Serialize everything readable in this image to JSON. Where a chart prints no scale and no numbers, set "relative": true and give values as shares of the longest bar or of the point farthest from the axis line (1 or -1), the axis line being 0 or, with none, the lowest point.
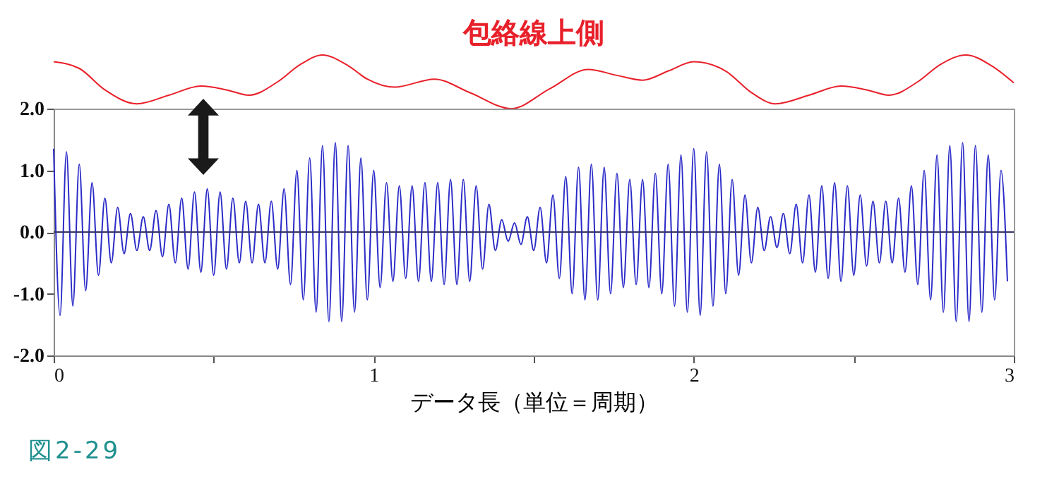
{
  "chart_data": [
    {
      "type": "line",
      "relative": true,
      "xlim": [
        0,
        3
      ],
      "tick_labels": false,
      "series": [
        {
          "name": "包絡線上側",
          "color": "#e8202a",
          "x": [
            0,
            0.08,
            0.16,
            0.26,
            0.36,
            0.46,
            0.54,
            0.61,
            0.7,
            0.77,
            0.84,
            0.92,
            0.98,
            1.065,
            1.19,
            1.3,
            1.43,
            1.55,
            1.67,
            1.76,
            1.84,
            1.92,
            2.0,
            2.1,
            2.18,
            2.255,
            2.36,
            2.46,
            2.54,
            2.61,
            2.7,
            2.77,
            2.85,
            2.93,
            3.0
          ],
          "values": [
            0.875,
            0.75,
            0.35,
            0.09,
            0.25,
            0.42,
            0.35,
            0.25,
            0.5,
            0.82,
            1,
            0.8,
            0.55,
            0.4,
            0.55,
            0.3,
            0,
            0.37,
            0.73,
            0.62,
            0.53,
            0.7,
            0.875,
            0.7,
            0.3,
            0.09,
            0.25,
            0.42,
            0.35,
            0.25,
            0.5,
            0.82,
            1,
            0.8,
            0.48
          ]
        }
      ]
    },
    {
      "type": "line",
      "xlabel": "データ長（単位＝周期）",
      "annotations": [
        "図2-29"
      ],
      "xlim": [
        0,
        3
      ],
      "ylim": [
        -2,
        2
      ],
      "xticks": [
        0,
        {
          "value": 0.5,
          "label": null
        },
        1,
        {
          "value": 1.5,
          "label": null
        },
        2,
        {
          "value": 2.5,
          "label": null
        },
        3
      ],
      "yticks": [
        {
          "value": -2,
          "label": "-2.0"
        },
        {
          "value": -1,
          "label": "-1.0"
        },
        {
          "value": 0,
          "label": "0.0"
        },
        {
          "value": 1,
          "label": "1.0"
        },
        {
          "value": 2,
          "label": "2.0"
        }
      ],
      "ref_lines": [
        {
          "axis": "y",
          "value": 0,
          "color": "#333366"
        }
      ],
      "series": [
        {
          "color": "#2b2bc8",
          "x": [
            0,
            0.02,
            0.04,
            0.06,
            0.08,
            0.1,
            0.12,
            0.14,
            0.16,
            0.18,
            0.2,
            0.22,
            0.24,
            0.26,
            0.28,
            0.3,
            0.32,
            0.34,
            0.36,
            0.38,
            0.4,
            0.42,
            0.44,
            0.46,
            0.48,
            0.5,
            0.52,
            0.54,
            0.56,
            0.58,
            0.6,
            0.62,
            0.64,
            0.66,
            0.68,
            0.7,
            0.72,
            0.74,
            0.76,
            0.78,
            0.8,
            0.82,
            0.84,
            0.86,
            0.88,
            0.9,
            0.92,
            0.94,
            0.96,
            0.98,
            1,
            1.02,
            1.04,
            1.06,
            1.08,
            1.1,
            1.12,
            1.14,
            1.16,
            1.18,
            1.2,
            1.22,
            1.24,
            1.26,
            1.28,
            1.3,
            1.32,
            1.34,
            1.36,
            1.38,
            1.4,
            1.42,
            1.44,
            1.46,
            1.48,
            1.5,
            1.52,
            1.54,
            1.56,
            1.58,
            1.6,
            1.62,
            1.64,
            1.66,
            1.68,
            1.7,
            1.72,
            1.74,
            1.76,
            1.78,
            1.8,
            1.82,
            1.84,
            1.86,
            1.88,
            1.9,
            1.92,
            1.94,
            1.96,
            1.98,
            2,
            2.02,
            2.04,
            2.06,
            2.08,
            2.1,
            2.12,
            2.14,
            2.16,
            2.18,
            2.2,
            2.22,
            2.24,
            2.26,
            2.28,
            2.3,
            2.32,
            2.34,
            2.36,
            2.38,
            2.4,
            2.42,
            2.44,
            2.46,
            2.48,
            2.5,
            2.52,
            2.54,
            2.56,
            2.58,
            2.6,
            2.62,
            2.64,
            2.66,
            2.68,
            2.7,
            2.72,
            2.74,
            2.76,
            2.78,
            2.8,
            2.82,
            2.84,
            2.86,
            2.88,
            2.9,
            2.92,
            2.94,
            2.96,
            2.98
          ],
          "values": [
            1.35,
            -1.35,
            1.3,
            -1.2,
            1.1,
            -0.95,
            0.8,
            -0.7,
            0.55,
            -0.5,
            0.4,
            -0.35,
            0.3,
            -0.3,
            0.25,
            -0.3,
            0.35,
            -0.4,
            0.45,
            -0.5,
            0.55,
            -0.6,
            0.65,
            -0.65,
            0.7,
            -0.7,
            0.65,
            -0.6,
            0.55,
            -0.5,
            0.5,
            -0.5,
            0.45,
            -0.5,
            0.5,
            -0.6,
            0.7,
            -0.85,
            1.0,
            -1.1,
            1.2,
            -1.3,
            1.4,
            -1.45,
            1.45,
            -1.45,
            1.4,
            -1.3,
            1.2,
            -1.1,
            1.0,
            -0.9,
            0.8,
            -0.8,
            0.75,
            -0.75,
            0.75,
            -0.8,
            0.8,
            -0.8,
            0.8,
            -0.85,
            0.85,
            -0.85,
            0.85,
            -0.8,
            0.75,
            -0.6,
            0.45,
            -0.3,
            0.2,
            -0.15,
            0.15,
            -0.2,
            0.25,
            -0.3,
            0.4,
            -0.5,
            0.6,
            -0.75,
            0.9,
            -1.0,
            1.05,
            -1.1,
            1.1,
            -1.1,
            1.05,
            -1.0,
            0.95,
            -0.9,
            0.85,
            -0.85,
            0.85,
            -0.9,
            0.95,
            -1.0,
            1.1,
            -1.2,
            1.25,
            -1.3,
            1.35,
            -1.35,
            1.3,
            -1.2,
            1.1,
            -1.0,
            0.85,
            -0.7,
            0.6,
            -0.5,
            0.4,
            -0.3,
            0.25,
            -0.25,
            0.3,
            -0.35,
            0.45,
            -0.5,
            0.6,
            -0.65,
            0.75,
            -0.75,
            0.8,
            -0.8,
            0.75,
            -0.7,
            0.6,
            -0.55,
            0.5,
            -0.5,
            0.5,
            -0.5,
            0.55,
            -0.65,
            0.75,
            -0.85,
            1.0,
            -1.1,
            1.25,
            -1.3,
            1.4,
            -1.45,
            1.45,
            -1.45,
            1.4,
            -1.3,
            1.25,
            -1.1,
            1.0,
            -0.8
          ]
        }
      ]
    }
  ]
}
